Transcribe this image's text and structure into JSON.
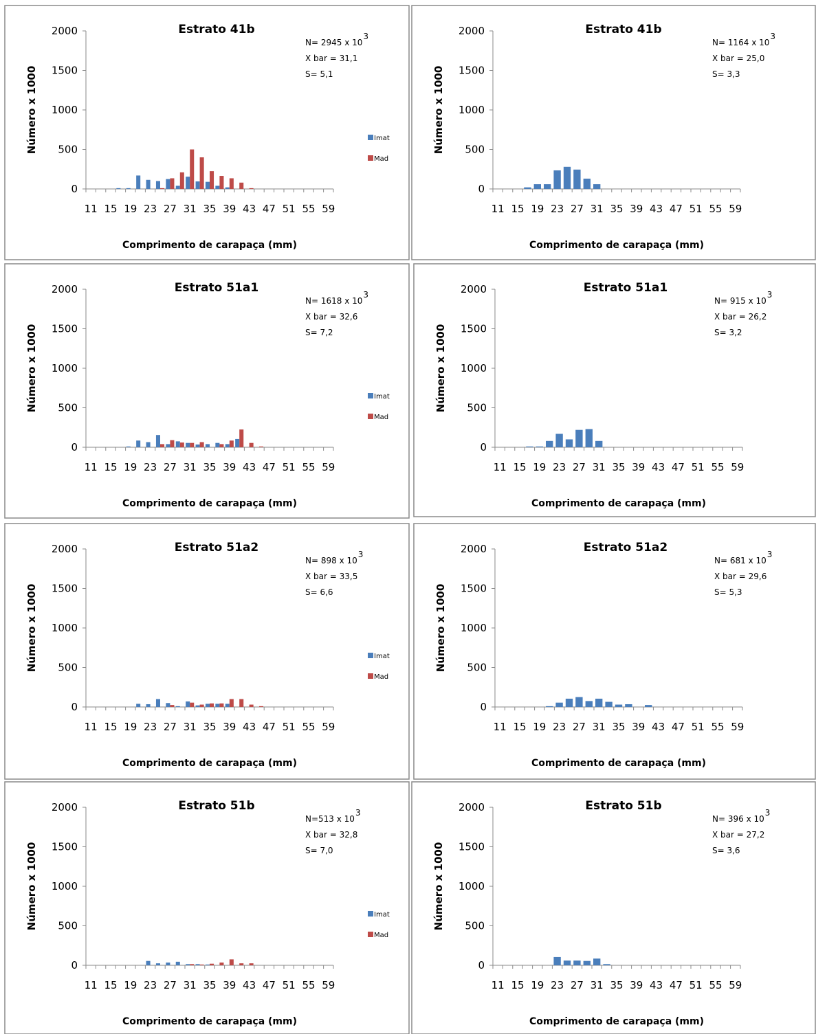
{
  "colors": {
    "imat": "#4a7ebb",
    "mad": "#be4b48"
  },
  "chart_data": [
    {
      "type": "bar",
      "title": "Estrato 41b",
      "xlabel": "Comprimento de carapaça (mm)",
      "ylabel": "Número x 1000",
      "ylim": [
        0,
        2000
      ],
      "yticks": [
        0,
        500,
        1000,
        1500,
        2000
      ],
      "x_tick_labels": [
        "11",
        "15",
        "19",
        "23",
        "27",
        "31",
        "35",
        "39",
        "43",
        "47",
        "51",
        "55",
        "59"
      ],
      "categories": [
        11,
        13,
        15,
        17,
        19,
        21,
        23,
        25,
        27,
        29,
        31,
        33,
        35,
        37,
        39,
        41,
        43,
        45,
        47,
        49,
        51,
        53,
        55,
        57,
        59
      ],
      "stats": {
        "n": "N= 2945 x 10",
        "n_exp": "3",
        "xbar": "X bar = 31,1",
        "s": "S= 5,1"
      },
      "legend": [
        "Imat",
        "Mad"
      ],
      "series": [
        {
          "name": "Imat",
          "values": [
            0,
            0,
            0,
            10,
            10,
            170,
            115,
            100,
            125,
            40,
            155,
            95,
            90,
            40,
            20,
            0,
            0,
            0,
            0,
            0,
            0,
            0,
            0,
            0,
            0
          ]
        },
        {
          "name": "Mad",
          "values": [
            0,
            0,
            0,
            0,
            0,
            0,
            0,
            10,
            135,
            210,
            500,
            400,
            225,
            165,
            135,
            80,
            10,
            0,
            0,
            0,
            0,
            0,
            0,
            0,
            0
          ]
        }
      ]
    },
    {
      "type": "bar",
      "title": "Estrato 41b",
      "xlabel": "Comprimento de carapaça (mm)",
      "ylabel": "Número x 1000",
      "ylim": [
        0,
        2000
      ],
      "yticks": [
        0,
        500,
        1000,
        1500,
        2000
      ],
      "x_tick_labels": [
        "11",
        "15",
        "19",
        "23",
        "27",
        "31",
        "35",
        "39",
        "43",
        "47",
        "51",
        "55",
        "59"
      ],
      "categories": [
        11,
        13,
        15,
        17,
        19,
        21,
        23,
        25,
        27,
        29,
        31,
        33,
        35,
        37,
        39,
        41,
        43,
        45,
        47,
        49,
        51,
        53,
        55,
        57,
        59
      ],
      "stats": {
        "n": "N= 1164 x 10",
        "n_exp": "3",
        "xbar": "X bar = 25,0",
        "s": "S=  3,3"
      },
      "legend": [],
      "series": [
        {
          "name": "",
          "values": [
            0,
            0,
            0,
            20,
            60,
            60,
            235,
            280,
            245,
            130,
            60,
            0,
            0,
            0,
            0,
            0,
            0,
            0,
            0,
            0,
            0,
            0,
            0,
            0,
            0
          ]
        }
      ]
    },
    {
      "type": "bar",
      "title": "Estrato 51a1",
      "xlabel": "Comprimento de carapaça (mm)",
      "ylabel": "Número x 1000",
      "ylim": [
        0,
        2000
      ],
      "yticks": [
        0,
        500,
        1000,
        1500,
        2000
      ],
      "x_tick_labels": [
        "11",
        "15",
        "19",
        "23",
        "27",
        "31",
        "35",
        "39",
        "43",
        "47",
        "51",
        "55",
        "59"
      ],
      "categories": [
        11,
        13,
        15,
        17,
        19,
        21,
        23,
        25,
        27,
        29,
        31,
        33,
        35,
        37,
        39,
        41,
        43,
        45,
        47,
        49,
        51,
        53,
        55,
        57,
        59
      ],
      "stats": {
        "n": "N= 1618 x 10",
        "n_exp": "3",
        "xbar": "X bar = 32,6",
        "s": "S=  7,2"
      },
      "legend": [
        "Imat",
        "Mad"
      ],
      "series": [
        {
          "name": "Imat",
          "values": [
            0,
            0,
            0,
            0,
            10,
            85,
            65,
            155,
            40,
            75,
            55,
            35,
            40,
            55,
            40,
            105,
            0,
            0,
            0,
            0,
            0,
            0,
            0,
            0,
            0
          ]
        },
        {
          "name": "Mad",
          "values": [
            0,
            0,
            0,
            0,
            0,
            0,
            0,
            40,
            90,
            60,
            55,
            65,
            0,
            40,
            85,
            225,
            55,
            10,
            0,
            0,
            0,
            0,
            0,
            0,
            0
          ]
        }
      ]
    },
    {
      "type": "bar",
      "title": "Estrato 51a1",
      "xlabel": "Comprimento de carapaça (mm)",
      "ylabel": "Número x 1000",
      "ylim": [
        0,
        2000
      ],
      "yticks": [
        0,
        500,
        1000,
        1500,
        2000
      ],
      "x_tick_labels": [
        "11",
        "15",
        "19",
        "23",
        "27",
        "31",
        "35",
        "39",
        "43",
        "47",
        "51",
        "55",
        "59"
      ],
      "categories": [
        11,
        13,
        15,
        17,
        19,
        21,
        23,
        25,
        27,
        29,
        31,
        33,
        35,
        37,
        39,
        41,
        43,
        45,
        47,
        49,
        51,
        53,
        55,
        57,
        59
      ],
      "stats": {
        "n": "N= 915 x 10",
        "n_exp": "3",
        "xbar": "X bar = 26,2",
        "s": "S=  3,2"
      },
      "legend": [],
      "series": [
        {
          "name": "",
          "values": [
            0,
            0,
            0,
            10,
            10,
            80,
            170,
            100,
            220,
            230,
            80,
            0,
            0,
            0,
            0,
            0,
            0,
            0,
            0,
            0,
            0,
            0,
            0,
            0,
            0
          ]
        }
      ]
    },
    {
      "type": "bar",
      "title": "Estrato 51a2",
      "xlabel": "Comprimento de carapaça (mm)",
      "ylabel": "Número x 1000",
      "ylim": [
        0,
        2000
      ],
      "yticks": [
        0,
        500,
        1000,
        1500,
        2000
      ],
      "x_tick_labels": [
        "11",
        "15",
        "19",
        "23",
        "27",
        "31",
        "35",
        "39",
        "43",
        "47",
        "51",
        "55",
        "59"
      ],
      "categories": [
        11,
        13,
        15,
        17,
        19,
        21,
        23,
        25,
        27,
        29,
        31,
        33,
        35,
        37,
        39,
        41,
        43,
        45,
        47,
        49,
        51,
        53,
        55,
        57,
        59
      ],
      "stats": {
        "n": "N= 898 x 10",
        "n_exp": "3",
        "xbar": "X bar = 33,5",
        "s": "S=  6,6"
      },
      "legend": [
        "Imat",
        "Mad"
      ],
      "series": [
        {
          "name": "Imat",
          "values": [
            0,
            0,
            0,
            0,
            0,
            40,
            35,
            100,
            50,
            10,
            70,
            20,
            40,
            40,
            40,
            0,
            0,
            0,
            0,
            0,
            0,
            0,
            0,
            0,
            0
          ]
        },
        {
          "name": "Mad",
          "values": [
            0,
            0,
            0,
            0,
            0,
            0,
            0,
            0,
            25,
            0,
            55,
            30,
            45,
            45,
            100,
            100,
            30,
            10,
            0,
            0,
            0,
            0,
            0,
            0,
            0
          ]
        }
      ]
    },
    {
      "type": "bar",
      "title": "Estrato 51a2",
      "xlabel": "Comprimento de carapaça (mm)",
      "ylabel": "Número x 1000",
      "ylim": [
        0,
        2000
      ],
      "yticks": [
        0,
        500,
        1000,
        1500,
        2000
      ],
      "x_tick_labels": [
        "11",
        "15",
        "19",
        "23",
        "27",
        "31",
        "35",
        "39",
        "43",
        "47",
        "51",
        "55",
        "59"
      ],
      "categories": [
        11,
        13,
        15,
        17,
        19,
        21,
        23,
        25,
        27,
        29,
        31,
        33,
        35,
        37,
        39,
        41,
        43,
        45,
        47,
        49,
        51,
        53,
        55,
        57,
        59
      ],
      "stats": {
        "n": "N= 681 x 10",
        "n_exp": "3",
        "xbar": "X bar = 29,6",
        "s": "S=  5,3"
      },
      "legend": [],
      "series": [
        {
          "name": "",
          "values": [
            0,
            0,
            0,
            0,
            0,
            10,
            55,
            105,
            125,
            75,
            105,
            65,
            30,
            35,
            0,
            25,
            0,
            0,
            0,
            0,
            0,
            0,
            0,
            0,
            0
          ]
        }
      ]
    },
    {
      "type": "bar",
      "title": "Estrato 51b",
      "xlabel": "Comprimento de carapaça (mm)",
      "ylabel": "Número x 1000",
      "ylim": [
        0,
        2000
      ],
      "yticks": [
        0,
        500,
        1000,
        1500,
        2000
      ],
      "x_tick_labels": [
        "11",
        "15",
        "19",
        "23",
        "27",
        "31",
        "35",
        "39",
        "43",
        "47",
        "51",
        "55",
        "59"
      ],
      "categories": [
        11,
        13,
        15,
        17,
        19,
        21,
        23,
        25,
        27,
        29,
        31,
        33,
        35,
        37,
        39,
        41,
        43,
        45,
        47,
        49,
        51,
        53,
        55,
        57,
        59
      ],
      "stats": {
        "n": "N=513 x 10",
        "n_exp": "3",
        "xbar": "X bar = 32,8",
        "s": "S=  7,0"
      },
      "legend": [
        "Imat",
        "Mad"
      ],
      "series": [
        {
          "name": "Imat",
          "values": [
            0,
            0,
            0,
            0,
            0,
            0,
            55,
            25,
            35,
            45,
            15,
            15,
            10,
            0,
            0,
            0,
            0,
            0,
            0,
            0,
            0,
            0,
            0,
            0,
            0
          ]
        },
        {
          "name": "Mad",
          "values": [
            0,
            0,
            0,
            0,
            0,
            0,
            0,
            0,
            0,
            0,
            15,
            10,
            20,
            35,
            75,
            25,
            25,
            0,
            0,
            0,
            0,
            0,
            0,
            0,
            0
          ]
        }
      ]
    },
    {
      "type": "bar",
      "title": "Estrato 51b",
      "xlabel": "Comprimento de carapaça (mm)",
      "ylabel": "Número x 1000",
      "ylim": [
        0,
        2000
      ],
      "yticks": [
        0,
        500,
        1000,
        1500,
        2000
      ],
      "x_tick_labels": [
        "11",
        "15",
        "19",
        "23",
        "27",
        "31",
        "35",
        "39",
        "43",
        "47",
        "51",
        "55",
        "59"
      ],
      "categories": [
        11,
        13,
        15,
        17,
        19,
        21,
        23,
        25,
        27,
        29,
        31,
        33,
        35,
        37,
        39,
        41,
        43,
        45,
        47,
        49,
        51,
        53,
        55,
        57,
        59
      ],
      "stats": {
        "n": "N= 396 x 10",
        "n_exp": "3",
        "xbar": "X bar = 27,2",
        "s": "S= 3,6"
      },
      "legend": [],
      "series": [
        {
          "name": "",
          "values": [
            0,
            0,
            0,
            0,
            0,
            0,
            105,
            60,
            60,
            55,
            85,
            15,
            0,
            0,
            0,
            0,
            0,
            0,
            0,
            0,
            0,
            0,
            0,
            0,
            0
          ]
        }
      ]
    }
  ]
}
